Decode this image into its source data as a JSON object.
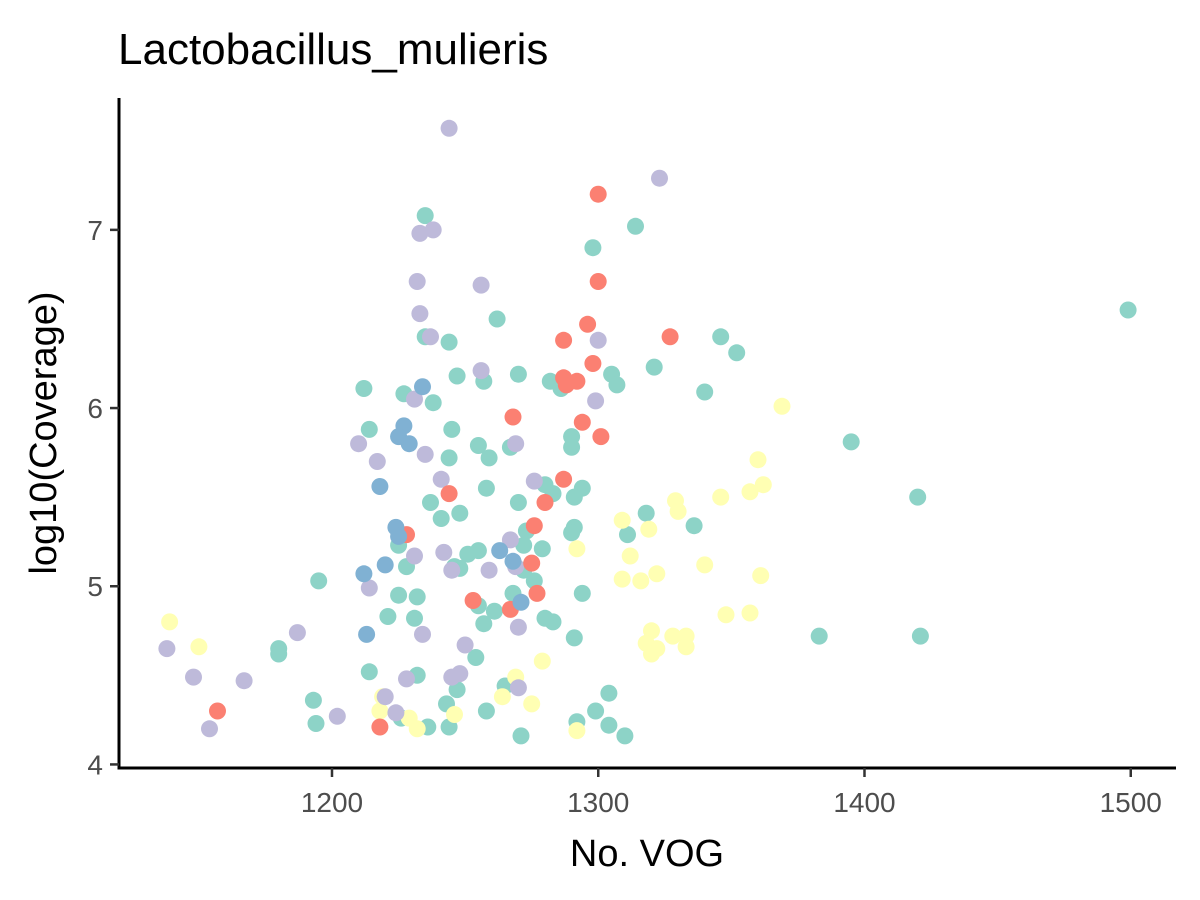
{
  "chart_data": {
    "type": "scatter",
    "title": "Lactobacillus_mulieris",
    "xlabel": "No. VOG",
    "ylabel": "log10(Coverage)",
    "xlim": [
      1120,
      1517
    ],
    "ylim": [
      3.98,
      7.74
    ],
    "xticks": [
      1200,
      1300,
      1400,
      1500
    ],
    "yticks": [
      4,
      5,
      6,
      7
    ],
    "grid": false,
    "legend": "none",
    "series": [
      {
        "color": "#8DD3C7",
        "points": [
          [
            1235,
            7.08
          ],
          [
            1298,
            6.9
          ],
          [
            1314,
            7.02
          ],
          [
            1262,
            6.5
          ],
          [
            1499,
            6.55
          ],
          [
            1346,
            6.4
          ],
          [
            1352,
            6.31
          ],
          [
            1244,
            6.37
          ],
          [
            1235,
            6.4
          ],
          [
            1321,
            6.23
          ],
          [
            1305,
            6.19
          ],
          [
            1307,
            6.13
          ],
          [
            1340,
            6.09
          ],
          [
            1212,
            6.11
          ],
          [
            1247,
            6.18
          ],
          [
            1257,
            6.15
          ],
          [
            1270,
            6.19
          ],
          [
            1282,
            6.15
          ],
          [
            1286,
            6.11
          ],
          [
            1227,
            6.08
          ],
          [
            1238,
            6.03
          ],
          [
            1214,
            5.88
          ],
          [
            1245,
            5.88
          ],
          [
            1395,
            5.81
          ],
          [
            1290,
            5.84
          ],
          [
            1290,
            5.78
          ],
          [
            1255,
            5.79
          ],
          [
            1267,
            5.78
          ],
          [
            1259,
            5.72
          ],
          [
            1244,
            5.72
          ],
          [
            1280,
            5.57
          ],
          [
            1258,
            5.55
          ],
          [
            1294,
            5.55
          ],
          [
            1283,
            5.52
          ],
          [
            1291,
            5.5
          ],
          [
            1237,
            5.47
          ],
          [
            1270,
            5.47
          ],
          [
            1420,
            5.5
          ],
          [
            1318,
            5.41
          ],
          [
            1248,
            5.41
          ],
          [
            1241,
            5.38
          ],
          [
            1336,
            5.34
          ],
          [
            1291,
            5.33
          ],
          [
            1311,
            5.29
          ],
          [
            1290,
            5.3
          ],
          [
            1273,
            5.31
          ],
          [
            1251,
            5.18
          ],
          [
            1272,
            5.23
          ],
          [
            1279,
            5.21
          ],
          [
            1255,
            5.2
          ],
          [
            1225,
            5.23
          ],
          [
            1228,
            5.11
          ],
          [
            1248,
            5.1
          ],
          [
            1246,
            5.11
          ],
          [
            1272,
            5.09
          ],
          [
            1276,
            5.03
          ],
          [
            1195,
            5.03
          ],
          [
            1225,
            4.95
          ],
          [
            1232,
            4.94
          ],
          [
            1268,
            4.96
          ],
          [
            1294,
            4.96
          ],
          [
            1221,
            4.83
          ],
          [
            1231,
            4.82
          ],
          [
            1255,
            4.89
          ],
          [
            1261,
            4.86
          ],
          [
            1257,
            4.79
          ],
          [
            1283,
            4.8
          ],
          [
            1280,
            4.82
          ],
          [
            1291,
            4.71
          ],
          [
            1383,
            4.72
          ],
          [
            1421,
            4.72
          ],
          [
            1180,
            4.65
          ],
          [
            1180,
            4.62
          ],
          [
            1254,
            4.6
          ],
          [
            1214,
            4.52
          ],
          [
            1232,
            4.5
          ],
          [
            1247,
            4.42
          ],
          [
            1265,
            4.44
          ],
          [
            1304,
            4.4
          ],
          [
            1193,
            4.36
          ],
          [
            1243,
            4.34
          ],
          [
            1258,
            4.3
          ],
          [
            1299,
            4.3
          ],
          [
            1226,
            4.26
          ],
          [
            1194,
            4.23
          ],
          [
            1292,
            4.24
          ],
          [
            1304,
            4.22
          ],
          [
            1244,
            4.21
          ],
          [
            1236,
            4.21
          ],
          [
            1271,
            4.16
          ],
          [
            1310,
            4.16
          ]
        ]
      },
      {
        "color": "#FFFFB3",
        "points": [
          [
            1369,
            6.01
          ],
          [
            1360,
            5.71
          ],
          [
            1362,
            5.57
          ],
          [
            1357,
            5.53
          ],
          [
            1346,
            5.5
          ],
          [
            1329,
            5.48
          ],
          [
            1330,
            5.42
          ],
          [
            1309,
            5.37
          ],
          [
            1319,
            5.32
          ],
          [
            1292,
            5.21
          ],
          [
            1312,
            5.17
          ],
          [
            1340,
            5.12
          ],
          [
            1322,
            5.07
          ],
          [
            1361,
            5.06
          ],
          [
            1309,
            5.04
          ],
          [
            1316,
            5.03
          ],
          [
            1348,
            4.84
          ],
          [
            1357,
            4.85
          ],
          [
            1320,
            4.75
          ],
          [
            1328,
            4.72
          ],
          [
            1333,
            4.72
          ],
          [
            1318,
            4.68
          ],
          [
            1322,
            4.65
          ],
          [
            1333,
            4.66
          ],
          [
            1320,
            4.62
          ],
          [
            1139,
            4.8
          ],
          [
            1150,
            4.66
          ],
          [
            1279,
            4.58
          ],
          [
            1269,
            4.49
          ],
          [
            1264,
            4.38
          ],
          [
            1219,
            4.38
          ],
          [
            1275,
            4.34
          ],
          [
            1218,
            4.3
          ],
          [
            1246,
            4.28
          ],
          [
            1229,
            4.26
          ],
          [
            1232,
            4.2
          ],
          [
            1292,
            4.19
          ]
        ]
      },
      {
        "color": "#BEBADA",
        "points": [
          [
            1244,
            7.57
          ],
          [
            1323,
            7.29
          ],
          [
            1238,
            7.0
          ],
          [
            1233,
            6.98
          ],
          [
            1232,
            6.71
          ],
          [
            1256,
            6.69
          ],
          [
            1233,
            6.53
          ],
          [
            1237,
            6.4
          ],
          [
            1300,
            6.38
          ],
          [
            1256,
            6.21
          ],
          [
            1231,
            6.05
          ],
          [
            1299,
            6.04
          ],
          [
            1210,
            5.8
          ],
          [
            1269,
            5.8
          ],
          [
            1235,
            5.74
          ],
          [
            1217,
            5.7
          ],
          [
            1241,
            5.6
          ],
          [
            1276,
            5.59
          ],
          [
            1267,
            5.26
          ],
          [
            1242,
            5.19
          ],
          [
            1231,
            5.17
          ],
          [
            1269,
            5.11
          ],
          [
            1259,
            5.09
          ],
          [
            1245,
            5.09
          ],
          [
            1214,
            4.99
          ],
          [
            1234,
            4.73
          ],
          [
            1187,
            4.74
          ],
          [
            1250,
            4.67
          ],
          [
            1138,
            4.65
          ],
          [
            1148,
            4.49
          ],
          [
            1167,
            4.47
          ],
          [
            1248,
            4.51
          ],
          [
            1245,
            4.49
          ],
          [
            1228,
            4.48
          ],
          [
            1270,
            4.43
          ],
          [
            1220,
            4.38
          ],
          [
            1224,
            4.29
          ],
          [
            1202,
            4.27
          ],
          [
            1154,
            4.2
          ],
          [
            1270,
            4.77
          ]
        ]
      },
      {
        "color": "#FB8072",
        "points": [
          [
            1300,
            7.2
          ],
          [
            1300,
            6.71
          ],
          [
            1327,
            6.4
          ],
          [
            1296,
            6.47
          ],
          [
            1287,
            6.38
          ],
          [
            1298,
            6.25
          ],
          [
            1287,
            6.17
          ],
          [
            1292,
            6.15
          ],
          [
            1288,
            6.13
          ],
          [
            1268,
            5.95
          ],
          [
            1294,
            5.92
          ],
          [
            1301,
            5.84
          ],
          [
            1287,
            5.6
          ],
          [
            1244,
            5.52
          ],
          [
            1280,
            5.47
          ],
          [
            1276,
            5.34
          ],
          [
            1228,
            5.29
          ],
          [
            1275,
            5.13
          ],
          [
            1253,
            4.92
          ],
          [
            1277,
            4.96
          ],
          [
            1267,
            4.87
          ],
          [
            1157,
            4.3
          ],
          [
            1218,
            4.21
          ]
        ]
      },
      {
        "color": "#80B1D3",
        "points": [
          [
            1234,
            6.12
          ],
          [
            1227,
            5.9
          ],
          [
            1225,
            5.84
          ],
          [
            1229,
            5.8
          ],
          [
            1218,
            5.56
          ],
          [
            1224,
            5.33
          ],
          [
            1225,
            5.28
          ],
          [
            1220,
            5.12
          ],
          [
            1212,
            5.07
          ],
          [
            1263,
            5.2
          ],
          [
            1268,
            5.14
          ],
          [
            1213,
            4.73
          ],
          [
            1271,
            4.91
          ]
        ]
      }
    ]
  }
}
